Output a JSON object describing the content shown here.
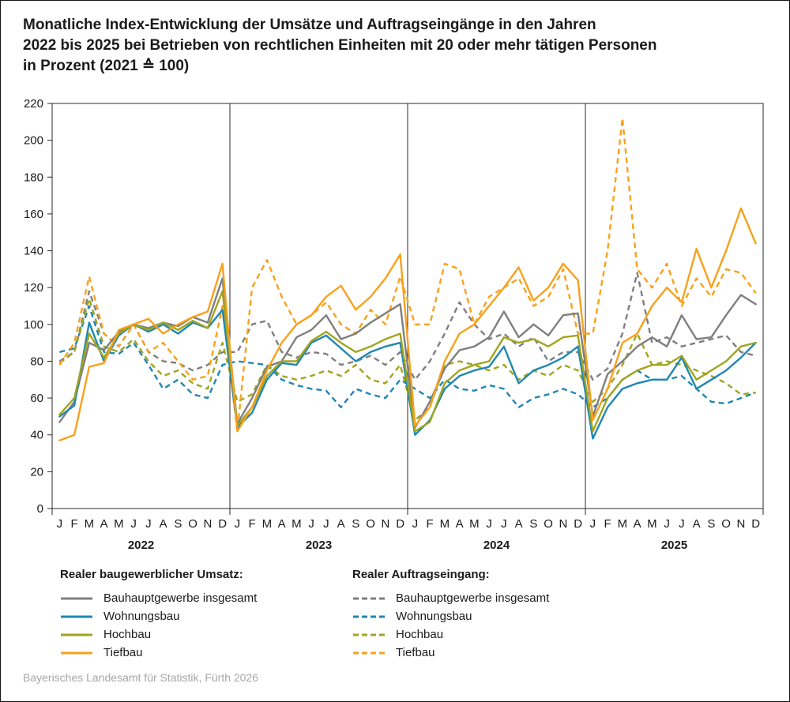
{
  "title": {
    "line1": "Monatliche Index-Entwicklung der Umsätze und Auftragseingänge in den Jahren",
    "line2": "2022 bis 2025 bei Betrieben von rechtlichen Einheiten mit 20 oder mehr tätigen Personen",
    "line3": "in Prozent (2021 ≙ 100)"
  },
  "footer": "Bayerisches Landesamt für Statistik, Fürth 2026",
  "chart_data": {
    "type": "line",
    "title": "Monatliche Index-Entwicklung der Umsätze und Auftragseingänge 2022 bis 2025 (2021 = 100)",
    "ylim": [
      0,
      220
    ],
    "ytick_step": 20,
    "grid": "none",
    "legend_position": "bottom",
    "years": [
      "2022",
      "2023",
      "2024",
      "2025"
    ],
    "month_labels": [
      "J",
      "F",
      "M",
      "A",
      "M",
      "J",
      "J",
      "A",
      "S",
      "O",
      "N",
      "D"
    ],
    "legend": {
      "umsatz_title": "Realer baugewerblicher Umsatz:",
      "auftragseingang_title": "Realer Auftragseingang:"
    },
    "colors": {
      "insgesamt": "#7f7f7f",
      "wohnungsbau": "#1f87b4",
      "hochbau": "#a0a51f",
      "tiefbau": "#f9a11b"
    },
    "series": [
      {
        "label": "Bauhauptgewerbe insgesamt",
        "group": "umsatz",
        "color_key": "insgesamt",
        "dashed": false,
        "values": [
          47,
          58,
          90,
          86,
          96,
          100,
          98,
          101,
          99,
          104,
          101,
          125,
          46,
          60,
          77,
          80,
          93,
          97,
          105,
          92,
          95,
          101,
          106,
          111,
          44,
          58,
          76,
          86,
          88,
          93,
          107,
          93,
          100,
          94,
          105,
          106,
          50,
          73,
          80,
          88,
          93,
          88,
          105,
          92,
          93,
          105,
          116,
          111
        ]
      },
      {
        "label": "Wohnungsbau",
        "group": "umsatz",
        "color_key": "wohnungsbau",
        "dashed": false,
        "values": [
          50,
          56,
          101,
          80,
          94,
          100,
          96,
          100,
          95,
          101,
          98,
          108,
          44,
          52,
          70,
          79,
          78,
          90,
          94,
          87,
          80,
          85,
          88,
          90,
          40,
          48,
          65,
          72,
          75,
          77,
          88,
          68,
          75,
          78,
          82,
          88,
          38,
          55,
          65,
          68,
          70,
          70,
          82,
          65,
          70,
          75,
          82,
          90
        ]
      },
      {
        "label": "Hochbau",
        "group": "umsatz",
        "color_key": "hochbau",
        "dashed": false,
        "values": [
          51,
          60,
          95,
          82,
          95,
          100,
          97,
          101,
          97,
          102,
          98,
          118,
          45,
          55,
          72,
          80,
          80,
          91,
          96,
          90,
          85,
          88,
          92,
          95,
          42,
          47,
          68,
          75,
          78,
          80,
          93,
          90,
          92,
          88,
          93,
          94,
          42,
          60,
          70,
          75,
          78,
          78,
          83,
          70,
          75,
          80,
          88,
          90
        ]
      },
      {
        "label": "Tiefbau",
        "group": "umsatz",
        "color_key": "tiefbau",
        "dashed": false,
        "values": [
          37,
          40,
          77,
          79,
          97,
          100,
          103,
          95,
          100,
          104,
          107,
          133,
          42,
          55,
          75,
          90,
          100,
          105,
          115,
          121,
          108,
          115,
          125,
          138,
          45,
          55,
          80,
          95,
          100,
          110,
          120,
          131,
          113,
          120,
          133,
          124,
          48,
          65,
          90,
          95,
          110,
          120,
          112,
          141,
          120,
          140,
          163,
          144
        ]
      },
      {
        "label": "Bauhauptgewerbe insgesamt",
        "group": "auftragseingang",
        "color_key": "insgesamt",
        "dashed": true,
        "values": [
          80,
          85,
          118,
          95,
          88,
          100,
          85,
          80,
          79,
          75,
          78,
          85,
          85,
          100,
          102,
          85,
          82,
          85,
          84,
          78,
          80,
          83,
          78,
          85,
          70,
          80,
          95,
          112,
          100,
          92,
          95,
          88,
          93,
          80,
          85,
          85,
          70,
          76,
          95,
          128,
          90,
          93,
          88,
          90,
          92,
          94,
          85,
          83
        ]
      },
      {
        "label": "Wohnungsbau",
        "group": "auftragseingang",
        "color_key": "wohnungsbau",
        "dashed": true,
        "values": [
          85,
          87,
          110,
          85,
          84,
          90,
          78,
          65,
          70,
          62,
          60,
          78,
          80,
          79,
          78,
          70,
          67,
          65,
          64,
          55,
          65,
          62,
          60,
          70,
          65,
          60,
          70,
          65,
          64,
          67,
          65,
          55,
          60,
          62,
          65,
          62,
          55,
          60,
          70,
          75,
          70,
          70,
          72,
          65,
          58,
          57,
          60,
          63
        ]
      },
      {
        "label": "Hochbau",
        "group": "auftragseingang",
        "color_key": "hochbau",
        "dashed": true,
        "values": [
          79,
          85,
          114,
          88,
          85,
          92,
          80,
          72,
          75,
          68,
          65,
          90,
          58,
          62,
          78,
          72,
          70,
          72,
          75,
          72,
          78,
          70,
          68,
          78,
          48,
          55,
          78,
          80,
          78,
          75,
          78,
          70,
          75,
          72,
          78,
          75,
          58,
          65,
          78,
          95,
          78,
          80,
          78,
          75,
          72,
          68,
          62,
          63
        ]
      },
      {
        "label": "Tiefbau",
        "group": "auftragseingang",
        "color_key": "tiefbau",
        "dashed": true,
        "values": [
          78,
          90,
          126,
          95,
          88,
          100,
          85,
          90,
          80,
          70,
          72,
          110,
          42,
          120,
          135,
          115,
          100,
          105,
          112,
          100,
          95,
          108,
          100,
          126,
          100,
          100,
          133,
          130,
          100,
          115,
          120,
          125,
          110,
          115,
          130,
          95,
          95,
          140,
          212,
          130,
          120,
          133,
          110,
          125,
          115,
          130,
          128,
          117
        ]
      }
    ]
  }
}
